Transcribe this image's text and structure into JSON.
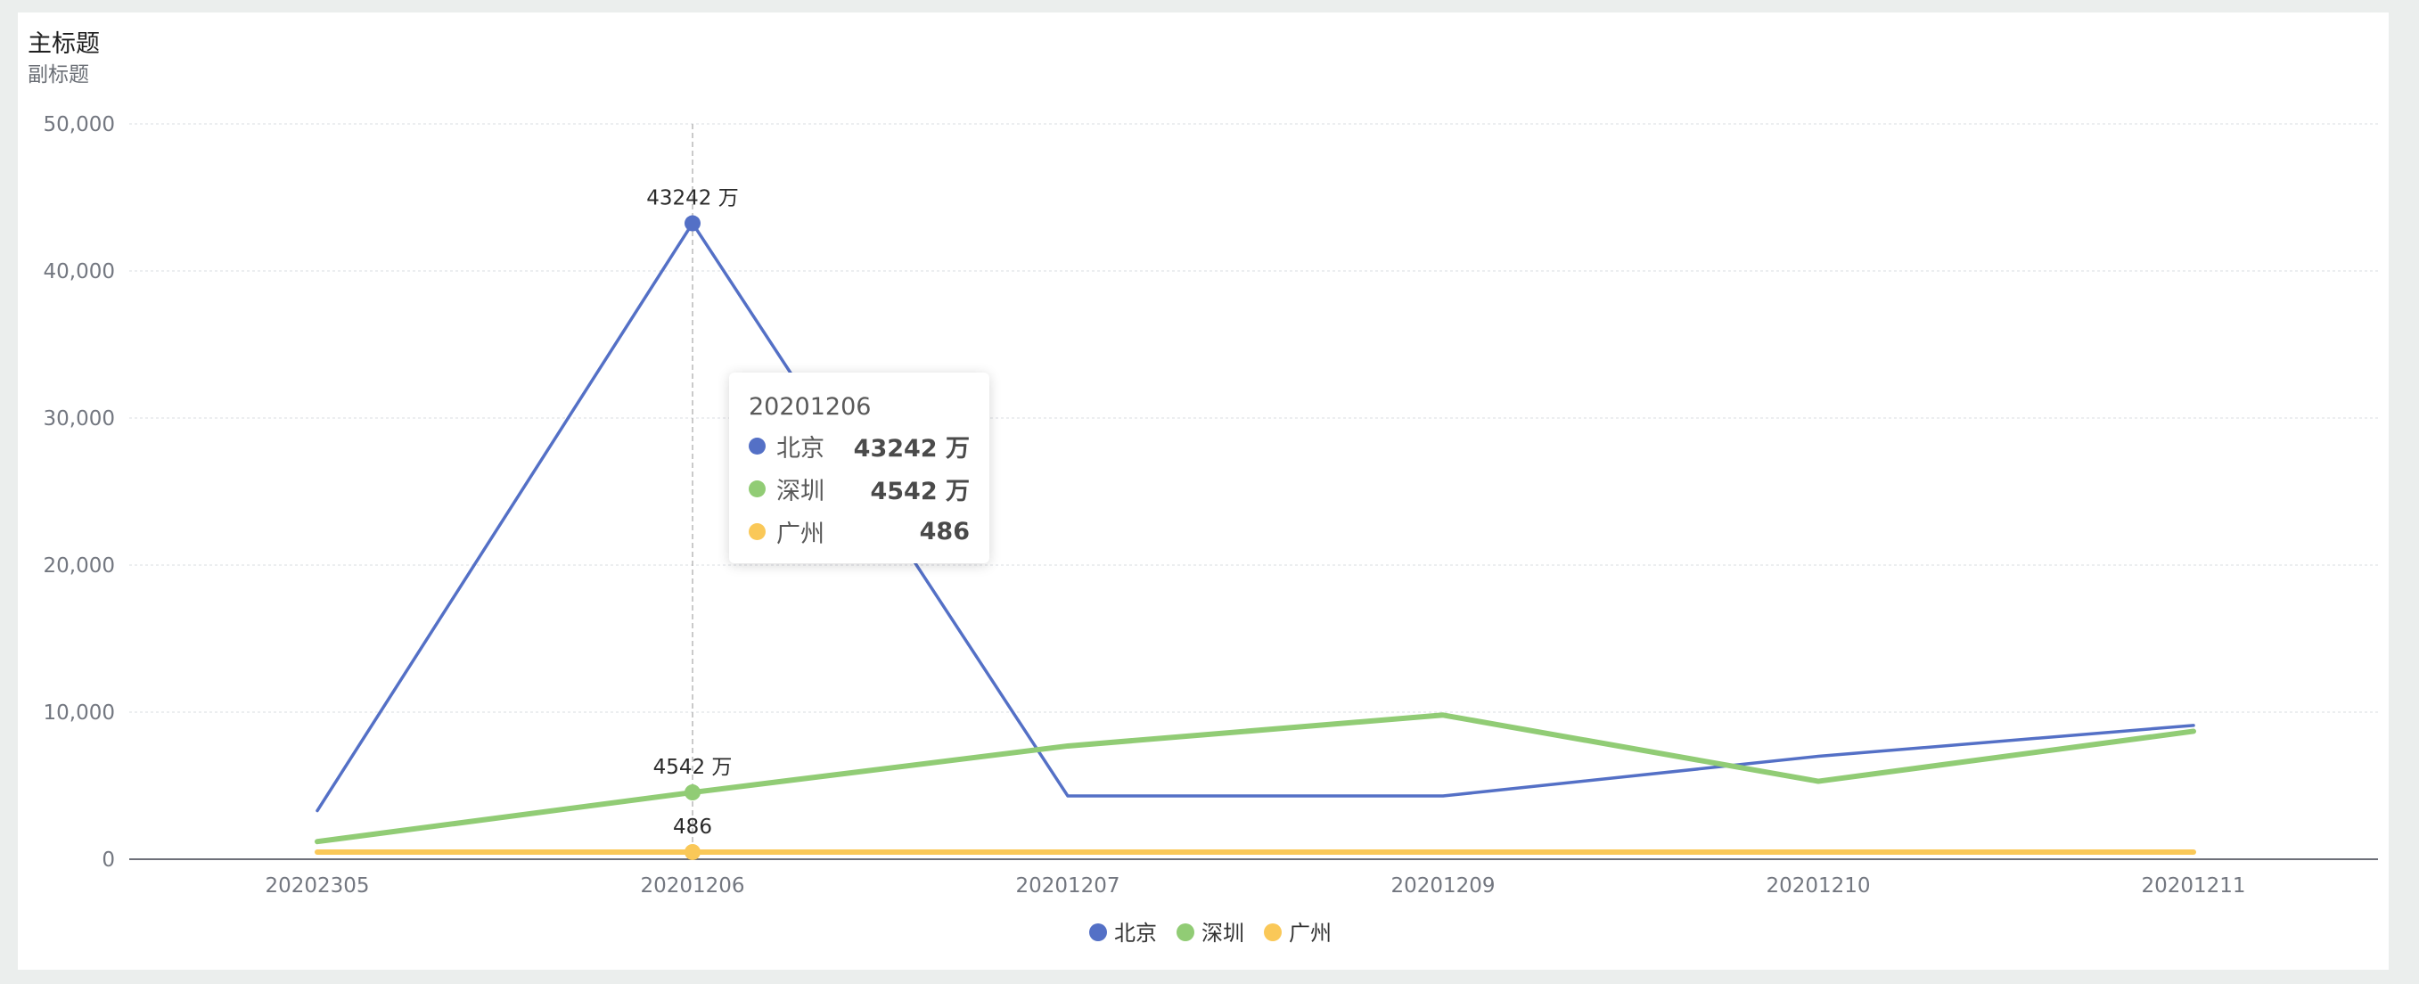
{
  "header": {
    "title": "主标题",
    "subtitle": "副标题"
  },
  "chart_data": {
    "type": "line",
    "title": "主标题",
    "subtitle": "副标题",
    "categories": [
      "20202305",
      "20201206",
      "20201207",
      "20201209",
      "20201210",
      "20201211"
    ],
    "y_ticks": [
      "0",
      "10,000",
      "20,000",
      "30,000",
      "40,000",
      "50,000"
    ],
    "ylim": [
      0,
      50000
    ],
    "grid": true,
    "legend_position": "bottom",
    "series": [
      {
        "name": "北京",
        "color": "#5470c6",
        "values": [
          3300,
          43242,
          4300,
          4300,
          7000,
          9100
        ]
      },
      {
        "name": "深圳",
        "color": "#91cc75",
        "values": [
          1200,
          4542,
          7700,
          9800,
          5300,
          8700
        ]
      },
      {
        "name": "广州",
        "color": "#fac858",
        "values": [
          486,
          486,
          486,
          486,
          486,
          486
        ]
      }
    ],
    "annotations": [
      {
        "series": 0,
        "index": 1,
        "text": "43242 万"
      },
      {
        "series": 1,
        "index": 1,
        "text": "4542 万"
      },
      {
        "series": 2,
        "index": 1,
        "text": "486"
      }
    ],
    "active_index": 1
  },
  "tooltip": {
    "title": "20201206",
    "rows": [
      {
        "name": "北京",
        "value": "43242 万",
        "color": "#5470c6"
      },
      {
        "name": "深圳",
        "value": "4542 万",
        "color": "#91cc75"
      },
      {
        "name": "广州",
        "value": "486",
        "color": "#fac858"
      }
    ]
  }
}
